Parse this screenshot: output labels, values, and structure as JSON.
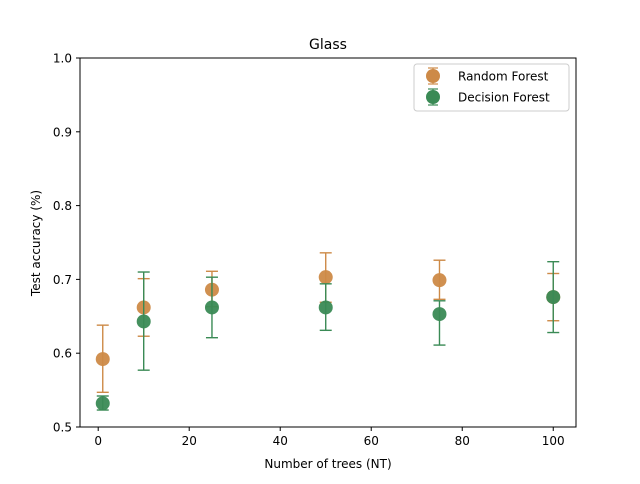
{
  "chart_data": {
    "type": "scatter",
    "title": "Glass",
    "xlabel": "Number of trees (NT)",
    "ylabel": "Test accuracy (%)",
    "xlim": [
      -4,
      105
    ],
    "ylim": [
      0.5,
      1.0
    ],
    "xticks": [
      0,
      20,
      40,
      60,
      80,
      100
    ],
    "xtick_labels": [
      "0",
      "20",
      "40",
      "60",
      "80",
      "100"
    ],
    "yticks": [
      0.5,
      0.6,
      0.7,
      0.8,
      0.9,
      1.0
    ],
    "ytick_labels": [
      "0.5",
      "0.6",
      "0.7",
      "0.8",
      "0.9",
      "1.0"
    ],
    "grid": false,
    "legend_position": "top-right",
    "series": [
      {
        "name": "Random Forest",
        "color": "#cd8a47",
        "marker": "circle",
        "x": [
          1,
          10,
          25,
          50,
          75,
          100
        ],
        "y": [
          0.592,
          0.662,
          0.686,
          0.703,
          0.699,
          0.676
        ],
        "yerr_low": [
          0.547,
          0.623,
          0.663,
          0.669,
          0.673,
          0.644
        ],
        "yerr_high": [
          0.638,
          0.701,
          0.711,
          0.736,
          0.726,
          0.708
        ]
      },
      {
        "name": "Decision Forest",
        "color": "#3a8a55",
        "marker": "circle",
        "x": [
          1,
          10,
          25,
          50,
          75,
          100
        ],
        "y": [
          0.532,
          0.643,
          0.662,
          0.662,
          0.653,
          0.676
        ],
        "yerr_low": [
          0.523,
          0.577,
          0.621,
          0.631,
          0.611,
          0.628
        ],
        "yerr_high": [
          0.542,
          0.71,
          0.703,
          0.694,
          0.671,
          0.724
        ]
      }
    ]
  }
}
